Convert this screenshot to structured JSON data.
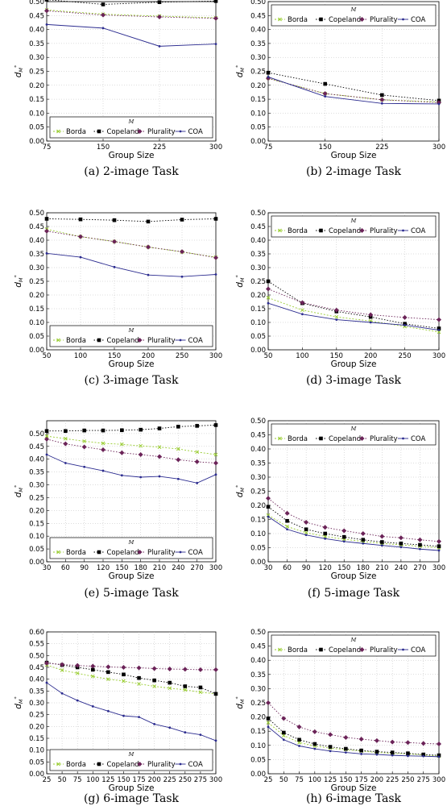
{
  "colors": {
    "Borda": "#9acd32",
    "Copeland": "#000000",
    "Plurality": "#6b2358",
    "COA": "#2b2b8f"
  },
  "legend": {
    "title": "M",
    "entries": [
      "Borda",
      "Copeland",
      "Plurality",
      "COA"
    ]
  },
  "chart_data": [
    {
      "id": "a",
      "type": "line",
      "caption": "(a) 2-image Task",
      "xlabel": "Group Size",
      "ylabel": "d*_M",
      "x": [
        75,
        150,
        225,
        300
      ],
      "xlim": [
        75,
        300
      ],
      "ylim": [
        0,
        0.5
      ],
      "yticks": [
        "0.00",
        "0.05",
        "0.10",
        "0.15",
        "0.20",
        "0.25",
        "0.30",
        "0.35",
        "0.40",
        "0.45",
        "0.50"
      ],
      "grid": true,
      "legend_position": "bottom",
      "series": [
        {
          "name": "Borda",
          "values": [
            0.47,
            0.455,
            0.448,
            0.442
          ]
        },
        {
          "name": "Copeland",
          "values": [
            0.507,
            0.49,
            0.498,
            0.502
          ]
        },
        {
          "name": "Plurality",
          "values": [
            0.467,
            0.452,
            0.445,
            0.44
          ]
        },
        {
          "name": "COA",
          "values": [
            0.418,
            0.405,
            0.34,
            0.348
          ]
        }
      ]
    },
    {
      "id": "b",
      "type": "line",
      "caption": "(b) 2-image Task",
      "xlabel": "Group Size",
      "ylabel": "d*_M",
      "x": [
        75,
        150,
        225,
        300
      ],
      "xlim": [
        75,
        300
      ],
      "ylim": [
        0,
        0.5
      ],
      "yticks": [
        "0.00",
        "0.05",
        "0.10",
        "0.15",
        "0.20",
        "0.25",
        "0.30",
        "0.35",
        "0.40",
        "0.45",
        "0.50"
      ],
      "grid": true,
      "legend_position": "top",
      "series": [
        {
          "name": "Borda",
          "values": [
            0.225,
            0.17,
            0.148,
            0.14
          ]
        },
        {
          "name": "Copeland",
          "values": [
            0.245,
            0.205,
            0.165,
            0.145
          ]
        },
        {
          "name": "Plurality",
          "values": [
            0.225,
            0.17,
            0.148,
            0.138
          ]
        },
        {
          "name": "COA",
          "values": [
            0.23,
            0.16,
            0.135,
            0.133
          ]
        }
      ]
    },
    {
      "id": "c",
      "type": "line",
      "caption": "(c) 3-image Task",
      "xlabel": "Group Size",
      "ylabel": "d*_M",
      "x": [
        50,
        100,
        150,
        200,
        250,
        300
      ],
      "xlim": [
        50,
        300
      ],
      "ylim": [
        0,
        0.5
      ],
      "yticks": [
        "0.00",
        "0.05",
        "0.10",
        "0.15",
        "0.20",
        "0.25",
        "0.30",
        "0.35",
        "0.40",
        "0.45",
        "0.50"
      ],
      "grid": true,
      "legend_position": "bottom",
      "series": [
        {
          "name": "Borda",
          "values": [
            0.44,
            0.413,
            0.395,
            0.375,
            0.357,
            0.338
          ]
        },
        {
          "name": "Copeland",
          "values": [
            0.478,
            0.476,
            0.473,
            0.468,
            0.475,
            0.478
          ]
        },
        {
          "name": "Plurality",
          "values": [
            0.433,
            0.413,
            0.395,
            0.375,
            0.358,
            0.336
          ]
        },
        {
          "name": "COA",
          "values": [
            0.352,
            0.338,
            0.302,
            0.273,
            0.267,
            0.275
          ]
        }
      ]
    },
    {
      "id": "d",
      "type": "line",
      "caption": "(d) 3-image Task",
      "xlabel": "Group Size",
      "ylabel": "d*_M",
      "x": [
        50,
        100,
        150,
        200,
        250,
        300
      ],
      "xlim": [
        50,
        300
      ],
      "ylim": [
        0,
        0.5
      ],
      "yticks": [
        "0.00",
        "0.05",
        "0.10",
        "0.15",
        "0.20",
        "0.25",
        "0.30",
        "0.35",
        "0.40",
        "0.45",
        "0.50"
      ],
      "grid": true,
      "legend_position": "top",
      "series": [
        {
          "name": "Borda",
          "values": [
            0.19,
            0.145,
            0.12,
            0.105,
            0.085,
            0.065
          ]
        },
        {
          "name": "Copeland",
          "values": [
            0.25,
            0.17,
            0.14,
            0.12,
            0.095,
            0.078
          ]
        },
        {
          "name": "Plurality",
          "values": [
            0.222,
            0.172,
            0.145,
            0.128,
            0.118,
            0.11
          ]
        },
        {
          "name": "COA",
          "values": [
            0.17,
            0.13,
            0.11,
            0.1,
            0.09,
            0.072
          ]
        }
      ]
    },
    {
      "id": "e",
      "type": "line",
      "caption": "(e) 5-image Task",
      "xlabel": "Group Size",
      "ylabel": "d*_M",
      "x": [
        30,
        60,
        90,
        120,
        150,
        180,
        210,
        240,
        270,
        300
      ],
      "xlim": [
        30,
        300
      ],
      "ylim": [
        0,
        0.55
      ],
      "yticks": [
        "0.00",
        "0.05",
        "0.10",
        "0.15",
        "0.20",
        "0.25",
        "0.30",
        "0.35",
        "0.40",
        "0.45",
        "0.50"
      ],
      "grid": true,
      "legend_position": "bottom",
      "series": [
        {
          "name": "Borda",
          "values": [
            0.49,
            0.48,
            0.47,
            0.462,
            0.458,
            0.452,
            0.447,
            0.44,
            0.428,
            0.418
          ]
        },
        {
          "name": "Copeland",
          "values": [
            0.51,
            0.51,
            0.512,
            0.512,
            0.513,
            0.515,
            0.52,
            0.527,
            0.53,
            0.533
          ]
        },
        {
          "name": "Plurality",
          "values": [
            0.478,
            0.46,
            0.448,
            0.437,
            0.425,
            0.418,
            0.41,
            0.398,
            0.39,
            0.385
          ]
        },
        {
          "name": "COA",
          "values": [
            0.418,
            0.385,
            0.37,
            0.355,
            0.337,
            0.33,
            0.333,
            0.323,
            0.307,
            0.34
          ]
        }
      ]
    },
    {
      "id": "f",
      "type": "line",
      "caption": "(f) 5-image Task",
      "xlabel": "Group Size",
      "ylabel": "d*_M",
      "x": [
        30,
        60,
        90,
        120,
        150,
        180,
        210,
        240,
        270,
        300
      ],
      "xlim": [
        30,
        300
      ],
      "ylim": [
        0,
        0.5
      ],
      "yticks": [
        "0.00",
        "0.05",
        "0.10",
        "0.15",
        "0.20",
        "0.25",
        "0.30",
        "0.35",
        "0.40",
        "0.45",
        "0.50"
      ],
      "grid": true,
      "legend_position": "top",
      "series": [
        {
          "name": "Borda",
          "values": [
            0.165,
            0.125,
            0.103,
            0.09,
            0.08,
            0.072,
            0.065,
            0.06,
            0.055,
            0.05
          ]
        },
        {
          "name": "Copeland",
          "values": [
            0.195,
            0.145,
            0.115,
            0.1,
            0.088,
            0.078,
            0.07,
            0.065,
            0.06,
            0.055
          ]
        },
        {
          "name": "Plurality",
          "values": [
            0.225,
            0.172,
            0.14,
            0.122,
            0.11,
            0.1,
            0.09,
            0.085,
            0.078,
            0.072
          ]
        },
        {
          "name": "COA",
          "values": [
            0.16,
            0.115,
            0.095,
            0.082,
            0.072,
            0.065,
            0.058,
            0.052,
            0.045,
            0.04
          ]
        }
      ]
    },
    {
      "id": "g",
      "type": "line",
      "caption": "(g) 6-image Task",
      "xlabel": "Group Size",
      "ylabel": "d*_M",
      "x": [
        25,
        50,
        75,
        100,
        125,
        150,
        175,
        200,
        225,
        250,
        275,
        300
      ],
      "xlim": [
        25,
        300
      ],
      "ylim": [
        0,
        0.6
      ],
      "yticks": [
        "0.00",
        "0.05",
        "0.10",
        "0.15",
        "0.20",
        "0.25",
        "0.30",
        "0.35",
        "0.40",
        "0.45",
        "0.50",
        "0.55",
        "0.60"
      ],
      "grid": true,
      "legend_position": "bottom",
      "series": [
        {
          "name": "Borda",
          "values": [
            0.46,
            0.438,
            0.425,
            0.412,
            0.4,
            0.392,
            0.38,
            0.37,
            0.362,
            0.355,
            0.345,
            0.338
          ]
        },
        {
          "name": "Copeland",
          "values": [
            0.47,
            0.46,
            0.45,
            0.44,
            0.43,
            0.42,
            0.405,
            0.395,
            0.385,
            0.37,
            0.365,
            0.338
          ]
        },
        {
          "name": "Plurality",
          "values": [
            0.468,
            0.462,
            0.458,
            0.455,
            0.452,
            0.45,
            0.448,
            0.445,
            0.443,
            0.442,
            0.44,
            0.44
          ]
        },
        {
          "name": "COA",
          "values": [
            0.385,
            0.34,
            0.31,
            0.285,
            0.265,
            0.245,
            0.24,
            0.21,
            0.195,
            0.175,
            0.165,
            0.14
          ]
        }
      ]
    },
    {
      "id": "h",
      "type": "line",
      "caption": "(h) 6-image Task",
      "xlabel": "Group Size",
      "ylabel": "d*_M",
      "x": [
        25,
        50,
        75,
        100,
        125,
        150,
        175,
        200,
        225,
        250,
        275,
        300
      ],
      "xlim": [
        25,
        300
      ],
      "ylim": [
        0,
        0.5
      ],
      "yticks": [
        "0.00",
        "0.05",
        "0.10",
        "0.15",
        "0.20",
        "0.25",
        "0.30",
        "0.35",
        "0.40",
        "0.45",
        "0.50"
      ],
      "grid": true,
      "legend_position": "top",
      "series": [
        {
          "name": "Borda",
          "values": [
            0.18,
            0.135,
            0.11,
            0.098,
            0.09,
            0.085,
            0.08,
            0.075,
            0.072,
            0.07,
            0.066,
            0.062
          ]
        },
        {
          "name": "Copeland",
          "values": [
            0.195,
            0.145,
            0.12,
            0.105,
            0.095,
            0.088,
            0.082,
            0.078,
            0.075,
            0.072,
            0.068,
            0.065
          ]
        },
        {
          "name": "Plurality",
          "values": [
            0.25,
            0.195,
            0.165,
            0.148,
            0.138,
            0.128,
            0.122,
            0.117,
            0.112,
            0.11,
            0.107,
            0.105
          ]
        },
        {
          "name": "COA",
          "values": [
            0.165,
            0.12,
            0.098,
            0.088,
            0.08,
            0.075,
            0.07,
            0.068,
            0.065,
            0.063,
            0.062,
            0.06
          ]
        }
      ]
    }
  ]
}
